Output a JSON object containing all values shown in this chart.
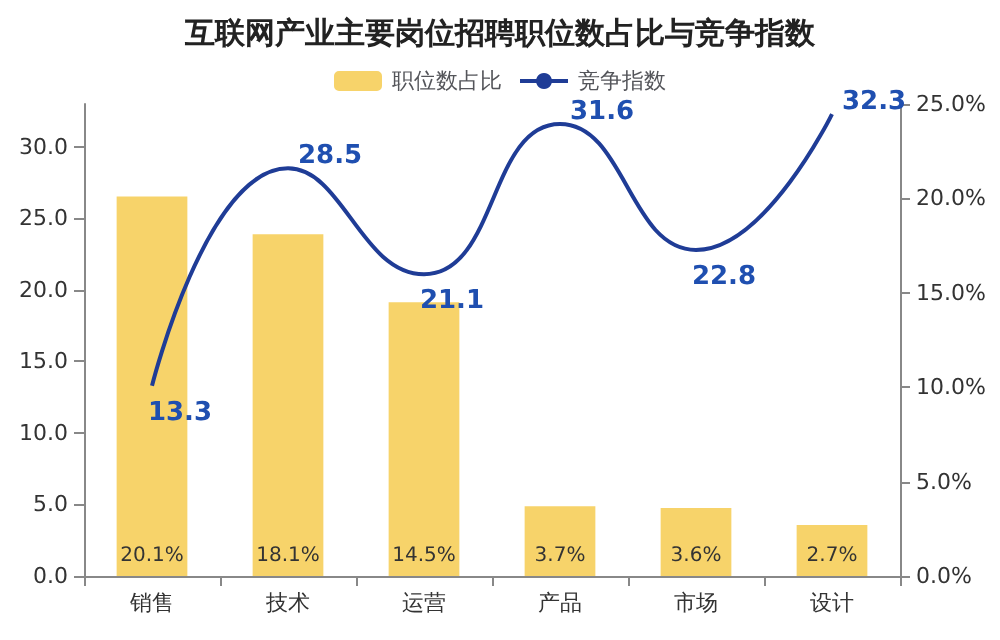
{
  "chart_data": {
    "type": "bar",
    "title": "互联网产业主要岗位招聘职位数占比与竞争指数",
    "categories": [
      "销售",
      "技术",
      "运营",
      "产品",
      "市场",
      "设计"
    ],
    "series": [
      {
        "name": "职位数占比",
        "axis": "y2",
        "color": "#f7d36a",
        "values": [
          20.1,
          18.1,
          14.5,
          3.7,
          3.6,
          2.7
        ],
        "value_labels": [
          "20.1%",
          "18.1%",
          "14.5%",
          "3.7%",
          "3.6%",
          "2.7%"
        ]
      },
      {
        "name": "竞争指数",
        "type": "line",
        "color": "#1f3c96",
        "values": [
          13.3,
          28.5,
          21.1,
          31.6,
          22.8,
          32.3
        ],
        "value_labels": [
          "13.3",
          "28.5",
          "21.1",
          "31.6",
          "22.8",
          "32.3"
        ]
      }
    ],
    "ylim": [
      0,
      33
    ],
    "yticks": [
      {
        "value": 0,
        "label": "0.0"
      },
      {
        "value": 5,
        "label": "5.0"
      },
      {
        "value": 10,
        "label": "10.0"
      },
      {
        "value": 15,
        "label": "15.0"
      },
      {
        "value": 20,
        "label": "20.0"
      },
      {
        "value": 25,
        "label": "25.0"
      },
      {
        "value": 30,
        "label": "30.0"
      }
    ],
    "y2lim": [
      0,
      25
    ],
    "y2ticks": [
      {
        "value": 0,
        "label": "0.0%"
      },
      {
        "value": 5,
        "label": "5.0%"
      },
      {
        "value": 10,
        "label": "10.0%"
      },
      {
        "value": 15,
        "label": "15.0%"
      },
      {
        "value": 20,
        "label": "20.0%"
      },
      {
        "value": 25,
        "label": "25.0%"
      }
    ],
    "legend": "top",
    "grid": false,
    "marker": "none",
    "line_style": "solid"
  }
}
